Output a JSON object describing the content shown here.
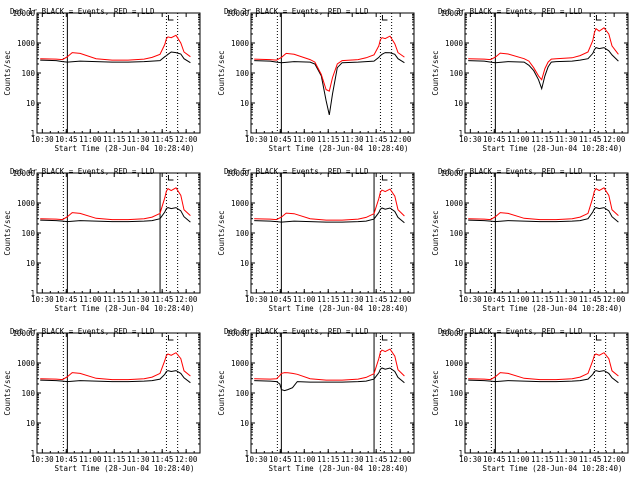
{
  "figure": {
    "xlabel": "Start Time (28-Jun-04 10:28:40)",
    "ylabel": "Counts/sec",
    "x_tick_labels": [
      "10:30",
      "10:45",
      "11:00",
      "11:15",
      "11:30",
      "11:45",
      "12:00"
    ],
    "y_tick_labels": [
      "1",
      "10",
      "100",
      "1000",
      "10000"
    ],
    "colors": {
      "events": "#000000",
      "lld": "#ff0000",
      "background": "#ffffff"
    }
  },
  "chart_data": [
    {
      "type": "line",
      "title": "Det 1r BLACK = Events, RED = LLD",
      "xlabel": "Start Time (28-Jun-04 10:28:40)",
      "ylabel": "Counts/sec",
      "xlim_min": [
        -2,
        100
      ],
      "ylim": [
        1,
        10000
      ],
      "yscale": "log",
      "vlines_solid_min": [
        17,
        115
      ],
      "vlines_dotted_min": [
        17,
        79,
        86
      ],
      "series": [
        {
          "name": "Events",
          "color": "#000000",
          "x": [
            0,
            10,
            14,
            17,
            25,
            35,
            45,
            55,
            65,
            70,
            75,
            78,
            79,
            80,
            82,
            85,
            88,
            90,
            94
          ],
          "y": [
            270,
            260,
            240,
            230,
            250,
            240,
            230,
            230,
            240,
            250,
            260,
            350,
            380,
            420,
            500,
            480,
            430,
            300,
            220
          ]
        },
        {
          "name": "LLD",
          "color": "#ff0000",
          "x": [
            0,
            10,
            14,
            17,
            20,
            25,
            35,
            45,
            55,
            65,
            70,
            75,
            78,
            79,
            80,
            82,
            85,
            88,
            90,
            94
          ],
          "y": [
            300,
            290,
            280,
            350,
            480,
            450,
            300,
            270,
            270,
            290,
            330,
            420,
            900,
            1400,
            1600,
            1500,
            1800,
            1000,
            500,
            350
          ]
        }
      ]
    },
    {
      "type": "line",
      "title": "Det 2r BLACK = Events, RED = LLD",
      "xlabel": "Start Time (28-Jun-04 10:28:40)",
      "ylabel": "Counts/sec",
      "xlim_min": [
        -2,
        100
      ],
      "ylim": [
        1,
        10000
      ],
      "yscale": "log",
      "vlines_solid_min": [
        17,
        115
      ],
      "vlines_dotted_min": [
        17,
        79,
        86
      ],
      "series": [
        {
          "name": "Events",
          "color": "#000000",
          "x": [
            0,
            10,
            14,
            17,
            25,
            35,
            38,
            42,
            45,
            47,
            49,
            52,
            55,
            65,
            70,
            75,
            78,
            79,
            80,
            82,
            85,
            88,
            90,
            94
          ],
          "y": [
            260,
            250,
            230,
            220,
            240,
            230,
            200,
            80,
            12,
            4,
            20,
            150,
            220,
            230,
            240,
            250,
            330,
            380,
            420,
            480,
            470,
            420,
            300,
            220
          ]
        },
        {
          "name": "LLD",
          "color": "#ff0000",
          "x": [
            0,
            10,
            14,
            17,
            20,
            25,
            35,
            38,
            42,
            45,
            47,
            49,
            52,
            55,
            65,
            70,
            75,
            78,
            79,
            80,
            82,
            85,
            88,
            90,
            94
          ],
          "y": [
            290,
            280,
            270,
            330,
            450,
            420,
            280,
            230,
            90,
            28,
            25,
            70,
            200,
            260,
            280,
            320,
            400,
            800,
            1300,
            1500,
            1400,
            1700,
            950,
            480,
            340
          ]
        }
      ]
    },
    {
      "type": "line",
      "title": "Det 3r BLACK = Events, RED = LLD",
      "xlabel": "Start Time (28-Jun-04 10:28:40)",
      "ylabel": "Counts/sec",
      "xlim_min": [
        -2,
        100
      ],
      "ylim": [
        1,
        10000
      ],
      "yscale": "log",
      "vlines_solid_min": [
        17,
        115
      ],
      "vlines_dotted_min": [
        17,
        79,
        86
      ],
      "series": [
        {
          "name": "Events",
          "color": "#000000",
          "x": [
            0,
            10,
            14,
            17,
            25,
            35,
            38,
            41,
            44,
            46,
            48,
            50,
            52,
            55,
            65,
            70,
            75,
            78,
            79,
            80,
            82,
            85,
            88,
            90,
            94
          ],
          "y": [
            260,
            250,
            230,
            220,
            240,
            230,
            180,
            120,
            60,
            30,
            80,
            160,
            230,
            240,
            250,
            270,
            300,
            450,
            600,
            700,
            650,
            700,
            550,
            400,
            250
          ]
        },
        {
          "name": "LLD",
          "color": "#ff0000",
          "x": [
            0,
            10,
            14,
            17,
            20,
            25,
            35,
            38,
            41,
            44,
            46,
            48,
            50,
            52,
            55,
            65,
            70,
            75,
            78,
            79,
            80,
            82,
            85,
            88,
            90,
            94
          ],
          "y": [
            300,
            290,
            280,
            340,
            460,
            430,
            300,
            250,
            150,
            80,
            60,
            140,
            230,
            290,
            300,
            320,
            380,
            500,
            1200,
            2200,
            3000,
            2500,
            3200,
            2000,
            800,
            420
          ]
        }
      ]
    },
    {
      "type": "line",
      "title": "Det 4r BLACK = Events, RED = LLD",
      "xlabel": "Start Time (28-Jun-04 10:28:40)",
      "ylabel": "Counts/sec",
      "xlim_min": [
        -2,
        100
      ],
      "ylim": [
        1,
        10000
      ],
      "yscale": "log",
      "vlines_solid_min": [
        17,
        75
      ],
      "vlines_dotted_min": [
        17,
        79,
        86
      ],
      "series": [
        {
          "name": "Events",
          "color": "#000000",
          "x": [
            0,
            10,
            14,
            17,
            25,
            35,
            45,
            55,
            65,
            70,
            75,
            78,
            79,
            80,
            82,
            85,
            88,
            90,
            94
          ],
          "y": [
            270,
            260,
            250,
            240,
            260,
            250,
            240,
            240,
            250,
            260,
            300,
            500,
            650,
            700,
            650,
            700,
            550,
            350,
            230
          ]
        },
        {
          "name": "LLD",
          "color": "#ff0000",
          "x": [
            0,
            10,
            14,
            17,
            20,
            25,
            35,
            45,
            55,
            65,
            70,
            75,
            78,
            79,
            80,
            82,
            85,
            88,
            90,
            94
          ],
          "y": [
            300,
            290,
            280,
            350,
            480,
            450,
            310,
            280,
            280,
            300,
            340,
            450,
            1500,
            2500,
            3000,
            2600,
            3200,
            1800,
            600,
            380
          ]
        }
      ]
    },
    {
      "type": "line",
      "title": "Det 5r BLACK = Events, RED = LLD",
      "xlabel": "Start Time (28-Jun-04 10:28:40)",
      "ylabel": "Counts/sec",
      "xlim_min": [
        -2,
        100
      ],
      "ylim": [
        1,
        10000
      ],
      "yscale": "log",
      "vlines_solid_min": [
        17,
        75
      ],
      "vlines_dotted_min": [
        17,
        79,
        86
      ],
      "series": [
        {
          "name": "Events",
          "color": "#000000",
          "x": [
            0,
            10,
            14,
            17,
            25,
            35,
            45,
            55,
            65,
            70,
            75,
            78,
            79,
            80,
            82,
            85,
            88,
            90,
            94
          ],
          "y": [
            260,
            250,
            240,
            230,
            250,
            240,
            230,
            230,
            240,
            250,
            290,
            480,
            620,
            680,
            620,
            680,
            520,
            330,
            220
          ]
        },
        {
          "name": "LLD",
          "color": "#ff0000",
          "x": [
            0,
            10,
            14,
            17,
            20,
            25,
            35,
            45,
            55,
            65,
            70,
            75,
            78,
            79,
            80,
            82,
            85,
            88,
            90,
            94
          ],
          "y": [
            300,
            290,
            280,
            340,
            460,
            440,
            300,
            270,
            270,
            290,
            330,
            440,
            1400,
            2300,
            2700,
            2400,
            2900,
            1700,
            600,
            370
          ]
        }
      ]
    },
    {
      "type": "line",
      "title": "Det 6r BLACK = Events, RED = LLD",
      "xlabel": "Start Time (28-Jun-04 10:28:40)",
      "ylabel": "Counts/sec",
      "xlim_min": [
        -2,
        100
      ],
      "ylim": [
        1,
        10000
      ],
      "yscale": "log",
      "vlines_solid_min": [
        17,
        115
      ],
      "vlines_dotted_min": [
        17,
        79,
        86
      ],
      "series": [
        {
          "name": "Events",
          "color": "#000000",
          "x": [
            0,
            10,
            14,
            17,
            25,
            35,
            45,
            55,
            65,
            70,
            75,
            78,
            79,
            80,
            82,
            85,
            88,
            90,
            94
          ],
          "y": [
            270,
            260,
            250,
            240,
            260,
            250,
            240,
            240,
            250,
            260,
            300,
            500,
            650,
            700,
            650,
            700,
            550,
            350,
            230
          ]
        },
        {
          "name": "LLD",
          "color": "#ff0000",
          "x": [
            0,
            10,
            14,
            17,
            20,
            25,
            35,
            45,
            55,
            65,
            70,
            75,
            78,
            79,
            80,
            82,
            85,
            88,
            90,
            94
          ],
          "y": [
            300,
            290,
            280,
            350,
            480,
            450,
            310,
            280,
            280,
            300,
            340,
            450,
            1500,
            2500,
            3000,
            2600,
            3200,
            1800,
            600,
            380
          ]
        }
      ]
    },
    {
      "type": "line",
      "title": "Det 7r BLACK = Events, RED = LLD",
      "xlabel": "Start Time (28-Jun-04 10:28:40)",
      "ylabel": "Counts/sec",
      "xlim_min": [
        -2,
        100
      ],
      "ylim": [
        1,
        10000
      ],
      "yscale": "log",
      "vlines_solid_min": [
        17,
        115
      ],
      "vlines_dotted_min": [
        17,
        79,
        86
      ],
      "series": [
        {
          "name": "Events",
          "color": "#000000",
          "x": [
            0,
            10,
            14,
            17,
            25,
            35,
            45,
            55,
            65,
            70,
            75,
            78,
            79,
            80,
            82,
            85,
            88,
            90,
            94
          ],
          "y": [
            270,
            260,
            250,
            240,
            260,
            250,
            240,
            240,
            250,
            260,
            290,
            420,
            520,
            560,
            520,
            560,
            450,
            320,
            220
          ]
        },
        {
          "name": "LLD",
          "color": "#ff0000",
          "x": [
            0,
            10,
            14,
            17,
            20,
            25,
            35,
            45,
            55,
            65,
            70,
            75,
            78,
            79,
            80,
            82,
            85,
            88,
            90,
            94
          ],
          "y": [
            300,
            290,
            280,
            350,
            480,
            450,
            310,
            280,
            280,
            300,
            340,
            450,
            1200,
            1800,
            2000,
            1800,
            2200,
            1400,
            550,
            370
          ]
        }
      ]
    },
    {
      "type": "line",
      "title": "Det 8r BLACK = Events, RED = LLD",
      "xlabel": "Start Time (28-Jun-04 10:28:40)",
      "ylabel": "Counts/sec",
      "xlim_min": [
        -2,
        100
      ],
      "ylim": [
        1,
        10000
      ],
      "yscale": "log",
      "vlines_solid_min": [
        17,
        75
      ],
      "vlines_dotted_min": [
        17,
        79,
        86
      ],
      "series": [
        {
          "name": "Events",
          "color": "#000000",
          "x": [
            0,
            10,
            14,
            16,
            17,
            19,
            21,
            24,
            27,
            35,
            45,
            55,
            65,
            70,
            75,
            78,
            79,
            80,
            82,
            85,
            88,
            90,
            94
          ],
          "y": [
            260,
            250,
            240,
            200,
            130,
            120,
            130,
            150,
            240,
            230,
            230,
            230,
            240,
            250,
            290,
            470,
            620,
            680,
            620,
            680,
            520,
            330,
            220
          ]
        },
        {
          "name": "LLD",
          "color": "#ff0000",
          "x": [
            0,
            10,
            14,
            16,
            17,
            19,
            21,
            24,
            27,
            35,
            45,
            55,
            65,
            70,
            75,
            78,
            79,
            80,
            82,
            85,
            88,
            90,
            94
          ],
          "y": [
            300,
            290,
            300,
            380,
            450,
            480,
            470,
            450,
            420,
            300,
            270,
            270,
            290,
            330,
            440,
            1400,
            2300,
            2700,
            2400,
            2900,
            1700,
            600,
            370
          ]
        }
      ]
    },
    {
      "type": "line",
      "title": "Det 9r BLACK = Events, RED = LLD",
      "xlabel": "Start Time (28-Jun-04 10:28:40)",
      "ylabel": "Counts/sec",
      "xlim_min": [
        -2,
        100
      ],
      "ylim": [
        1,
        10000
      ],
      "yscale": "log",
      "vlines_solid_min": [
        17,
        115
      ],
      "vlines_dotted_min": [
        17,
        79,
        86
      ],
      "series": [
        {
          "name": "Events",
          "color": "#000000",
          "x": [
            0,
            10,
            14,
            17,
            25,
            35,
            45,
            55,
            65,
            70,
            75,
            78,
            79,
            80,
            82,
            85,
            88,
            90,
            94
          ],
          "y": [
            270,
            260,
            250,
            240,
            260,
            250,
            240,
            240,
            250,
            260,
            290,
            420,
            520,
            560,
            520,
            560,
            450,
            320,
            220
          ]
        },
        {
          "name": "LLD",
          "color": "#ff0000",
          "x": [
            0,
            10,
            14,
            17,
            20,
            25,
            35,
            45,
            55,
            65,
            70,
            75,
            78,
            79,
            80,
            82,
            85,
            88,
            90,
            94
          ],
          "y": [
            300,
            290,
            280,
            350,
            480,
            450,
            310,
            280,
            280,
            300,
            340,
            450,
            1200,
            1800,
            2000,
            1800,
            2200,
            1400,
            550,
            370
          ]
        }
      ]
    }
  ]
}
